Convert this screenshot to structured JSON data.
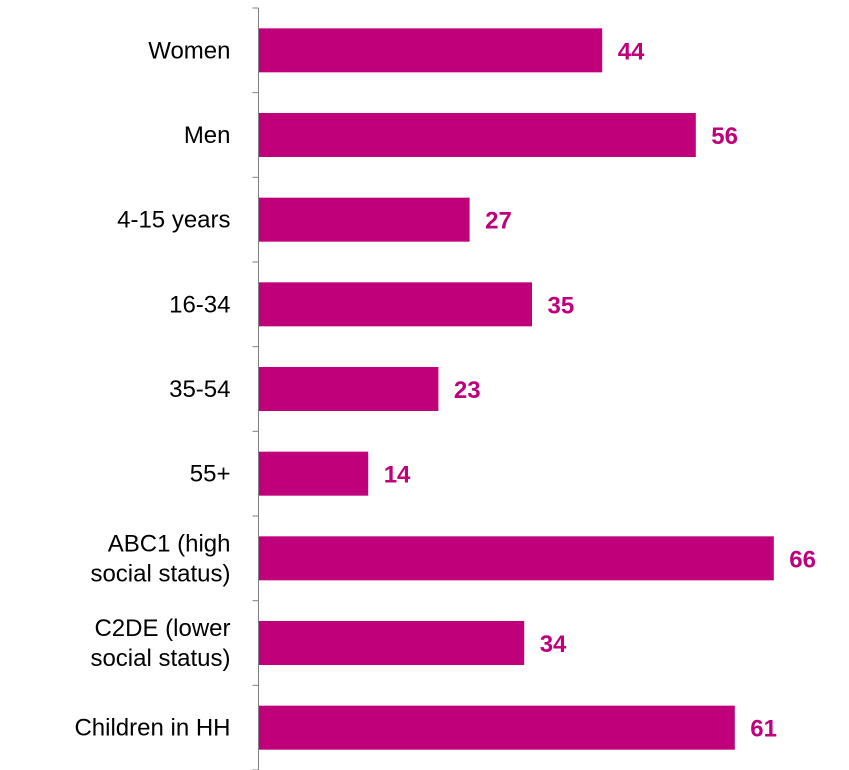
{
  "chart_data": {
    "type": "bar",
    "orientation": "horizontal",
    "categories": [
      [
        "Women"
      ],
      [
        "Men"
      ],
      [
        "4-15 years"
      ],
      [
        "16-34"
      ],
      [
        "35-54"
      ],
      [
        "55+"
      ],
      [
        "ABC1 (high",
        "social status)"
      ],
      [
        "C2DE (lower",
        "social status)"
      ],
      [
        "Children in HH"
      ]
    ],
    "values": [
      44,
      56,
      27,
      35,
      23,
      14,
      66,
      34,
      61
    ],
    "title": "",
    "xlabel": "",
    "ylabel": "",
    "xlim": [
      0,
      75
    ],
    "grid": false,
    "legend": "none",
    "data_labels": true
  },
  "colors": {
    "bar": "#C0007A",
    "value_label": "#C0007A",
    "axis": "#7f7f7f"
  }
}
